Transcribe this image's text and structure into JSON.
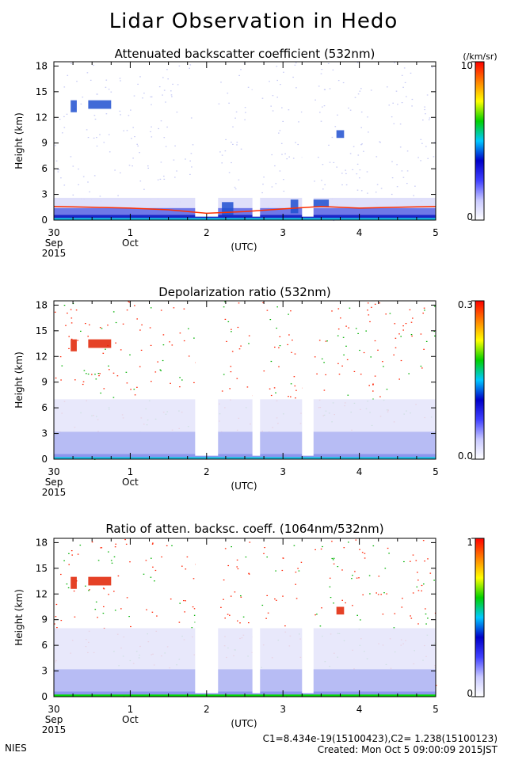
{
  "page": {
    "title": "Lidar Observation in Hedo",
    "footer_left": "NIES",
    "footer_calib": "C1=8.434e-19(15100423),C2= 1.238(15100123)",
    "footer_created": "Created: Mon Oct  5 09:00:09 2015JST"
  },
  "axes_common": {
    "ylabel": "Height (km)",
    "xlabel": "(UTC)",
    "xticks": [
      {
        "day": 0,
        "line1": "30",
        "line2": "Sep",
        "line3": "2015"
      },
      {
        "day": 1,
        "line1": "1",
        "line2": "Oct",
        "line3": ""
      },
      {
        "day": 2,
        "line1": "2",
        "line2": "",
        "line3": ""
      },
      {
        "day": 3,
        "line1": "3",
        "line2": "",
        "line3": ""
      },
      {
        "day": 4,
        "line1": "4",
        "line2": "",
        "line3": ""
      },
      {
        "day": 5,
        "line1": "5",
        "line2": "",
        "line3": ""
      }
    ],
    "yticks": [
      0,
      3,
      6,
      9,
      12,
      15,
      18
    ]
  },
  "colorbar_colors": [
    "#ffffff",
    "#c8c8ff",
    "#4040ff",
    "#0000c8",
    "#00c8ff",
    "#00d000",
    "#ffff00",
    "#ff8000",
    "#ff0000"
  ],
  "chart_data": [
    {
      "type": "heatmap",
      "title": "Attenuated backscatter coefficient (532nm)",
      "xlabel": "(UTC)",
      "ylabel": "Height (km)",
      "xlim": [
        0,
        5
      ],
      "ylim": [
        0,
        18.5
      ],
      "colorbar": {
        "min_label": "0",
        "max_label": "10",
        "unit": "(/km/sr)"
      },
      "data_gaps_days": [
        [
          1.85,
          2.15
        ],
        [
          2.6,
          2.7
        ],
        [
          3.25,
          3.4
        ]
      ],
      "boundary_layer_top_km": [
        {
          "x": 0.0,
          "y": 1.6
        },
        {
          "x": 0.5,
          "y": 1.5
        },
        {
          "x": 1.0,
          "y": 1.4
        },
        {
          "x": 1.5,
          "y": 1.2
        },
        {
          "x": 2.0,
          "y": 0.8
        },
        {
          "x": 2.5,
          "y": 1.0
        },
        {
          "x": 3.0,
          "y": 1.3
        },
        {
          "x": 3.5,
          "y": 1.6
        },
        {
          "x": 4.0,
          "y": 1.4
        },
        {
          "x": 4.5,
          "y": 1.5
        },
        {
          "x": 5.0,
          "y": 1.6
        }
      ],
      "cloud_layers": [
        {
          "x0": 0.22,
          "x1": 0.3,
          "y0": 12.6,
          "y1": 14.0
        },
        {
          "x0": 0.45,
          "x1": 0.75,
          "y0": 13.0,
          "y1": 14.0
        },
        {
          "x0": 2.2,
          "x1": 2.35,
          "y0": 0.6,
          "y1": 2.1
        },
        {
          "x0": 3.1,
          "x1": 3.2,
          "y0": 0.8,
          "y1": 2.4
        },
        {
          "x0": 3.4,
          "x1": 3.6,
          "y0": 1.5,
          "y1": 2.4
        },
        {
          "x0": 3.7,
          "x1": 3.8,
          "y0": 9.6,
          "y1": 10.5
        }
      ]
    },
    {
      "type": "heatmap",
      "title": "Depolarization ratio (532nm)",
      "xlabel": "(UTC)",
      "ylabel": "Height (km)",
      "xlim": [
        0,
        5
      ],
      "ylim": [
        0,
        18.5
      ],
      "colorbar": {
        "min_label": "0.0",
        "max_label": "0.3",
        "unit": ""
      },
      "data_gaps_days": [
        [
          1.85,
          2.15
        ],
        [
          2.6,
          2.7
        ],
        [
          3.25,
          3.4
        ]
      ],
      "cloud_layers": [
        {
          "x0": 0.22,
          "x1": 0.3,
          "y0": 12.6,
          "y1": 14.0
        },
        {
          "x0": 0.45,
          "x1": 0.75,
          "y0": 13.0,
          "y1": 14.0
        }
      ]
    },
    {
      "type": "heatmap",
      "title": "Ratio of atten. backsc. coeff. (1064nm/532nm)",
      "xlabel": "(UTC)",
      "ylabel": "Height (km)",
      "xlim": [
        0,
        5
      ],
      "ylim": [
        0,
        18.5
      ],
      "colorbar": {
        "min_label": "0",
        "max_label": "1",
        "unit": ""
      },
      "data_gaps_days": [
        [
          1.85,
          2.15
        ],
        [
          2.6,
          2.7
        ],
        [
          3.25,
          3.4
        ]
      ],
      "cloud_layers": [
        {
          "x0": 0.22,
          "x1": 0.3,
          "y0": 12.6,
          "y1": 14.0
        },
        {
          "x0": 0.45,
          "x1": 0.75,
          "y0": 13.0,
          "y1": 14.0
        },
        {
          "x0": 3.7,
          "x1": 3.8,
          "y0": 9.6,
          "y1": 10.5
        }
      ]
    }
  ]
}
